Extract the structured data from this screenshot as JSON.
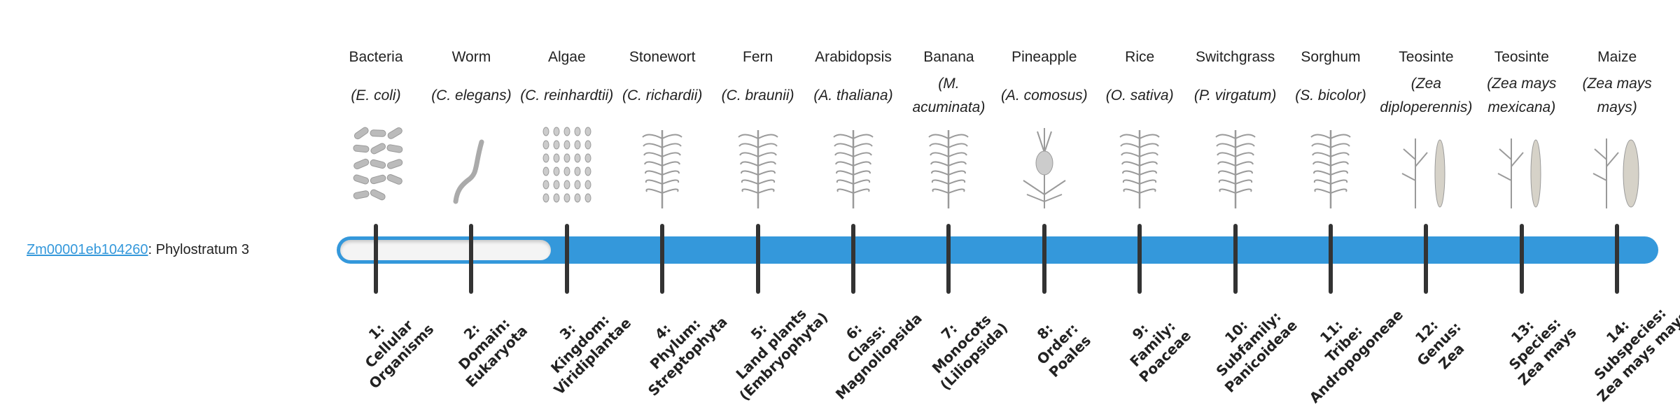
{
  "gene": {
    "id": "Zm00001eb104260",
    "suffix": ": Phylostratum 3"
  },
  "phylostratum": 3,
  "accent_color": "#3498db",
  "organisms": [
    {
      "common": "Bacteria",
      "scientific": "(E. coli)",
      "icon": "bacteria-icon"
    },
    {
      "common": "Worm",
      "scientific": "(C. elegans)",
      "icon": "worm-icon"
    },
    {
      "common": "Algae",
      "scientific": "(C. reinhardtii)",
      "icon": "algae-icon"
    },
    {
      "common": "Stonewort",
      "scientific": "(C. richardii)",
      "icon": "stonewort-icon"
    },
    {
      "common": "Fern",
      "scientific": "(C. braunii)",
      "icon": "fern-icon"
    },
    {
      "common": "Arabidopsis",
      "scientific": "(A. thaliana)",
      "icon": "arabidopsis-icon"
    },
    {
      "common": "Banana",
      "scientific": "(M. acuminata)",
      "icon": "banana-icon"
    },
    {
      "common": "Pineapple",
      "scientific": "(A. comosus)",
      "icon": "pineapple-icon"
    },
    {
      "common": "Rice",
      "scientific": "(O. sativa)",
      "icon": "rice-icon"
    },
    {
      "common": "Switchgrass",
      "scientific": "(P. virgatum)",
      "icon": "switchgrass-icon"
    },
    {
      "common": "Sorghum",
      "scientific": "(S. bicolor)",
      "icon": "sorghum-icon"
    },
    {
      "common": "Teosinte",
      "scientific": "(Zea diploperennis)",
      "icon": "teosinte-icon"
    },
    {
      "common": "Teosinte",
      "scientific": "(Zea mays mexicana)",
      "icon": "teosinte-icon"
    },
    {
      "common": "Maize",
      "scientific": "(Zea mays mays)",
      "icon": "maize-icon"
    }
  ],
  "strata": [
    {
      "num": "1:",
      "line1": "Cellular",
      "line2": "Organisms"
    },
    {
      "num": "2:",
      "line1": "Domain:",
      "line2": "Eukaryota"
    },
    {
      "num": "3:",
      "line1": "Kingdom:",
      "line2": "Viridiplantae"
    },
    {
      "num": "4:",
      "line1": "Phylum:",
      "line2": "Streptophyta"
    },
    {
      "num": "5:",
      "line1": "Land plants",
      "line2": "(Embryophyta)"
    },
    {
      "num": "6:",
      "line1": "Class:",
      "line2": "Magnoliopsida"
    },
    {
      "num": "7:",
      "line1": "Monocots",
      "line2": "(Liliopsida)"
    },
    {
      "num": "8:",
      "line1": "Order:",
      "line2": "Poales"
    },
    {
      "num": "9:",
      "line1": "Family:",
      "line2": "Poaceae"
    },
    {
      "num": "10:",
      "line1": "Subfamily:",
      "line2": "Panicoideae"
    },
    {
      "num": "11:",
      "line1": "Tribe:",
      "line2": "Andropogoneae"
    },
    {
      "num": "12:",
      "line1": "Genus:",
      "line2": "Zea"
    },
    {
      "num": "13:",
      "line1": "Species:",
      "line2": "Zea mays"
    },
    {
      "num": "14:",
      "line1": "Subspecies:",
      "line2": "Zea mays mays"
    }
  ]
}
